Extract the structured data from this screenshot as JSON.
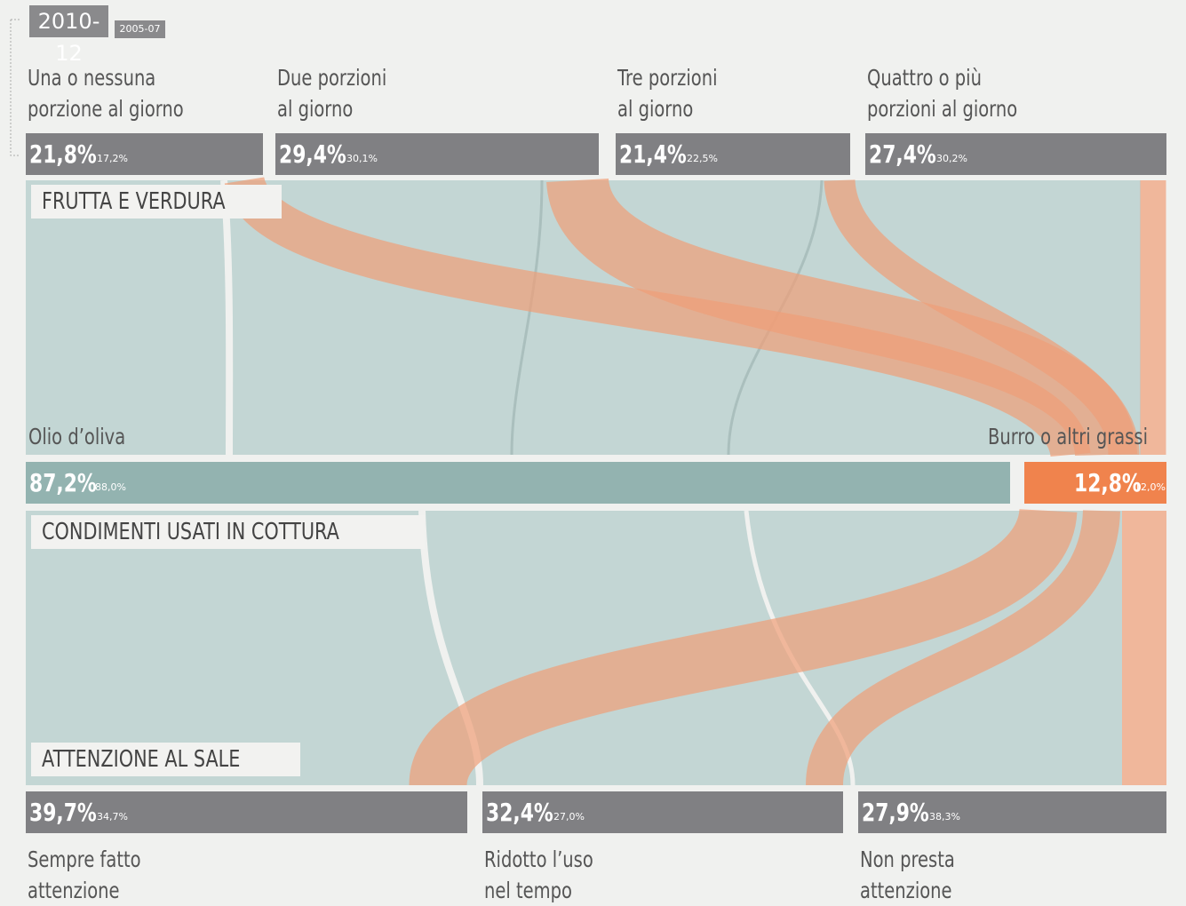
{
  "legend": {
    "current": "2010-12",
    "previous": "2005-07"
  },
  "top_groups": [
    {
      "lines": [
        "Una o nessuna",
        "porzione al giorno"
      ],
      "value": "21,8%",
      "previous": "17,2%"
    },
    {
      "lines": [
        "Due porzioni",
        "al giorno"
      ],
      "value": "29,4%",
      "previous": "30,1%"
    },
    {
      "lines": [
        "Tre porzioni",
        "al giorno"
      ],
      "value": "21,4%",
      "previous": "22,5%"
    },
    {
      "lines": [
        "Quattro o più",
        "porzioni al giorno"
      ],
      "value": "27,4%",
      "previous": "30,2%"
    }
  ],
  "sections": [
    "FRUTTA E VERDURA",
    "CONDIMENTI USATI IN COTTURA",
    "ATTENZIONE AL SALE"
  ],
  "middle": [
    {
      "label": "Olio d’oliva",
      "value": "87,2%",
      "previous": "88,0%"
    },
    {
      "label": "Burro o altri grassi",
      "value": "12,8%",
      "previous": "12,0%"
    }
  ],
  "bottom_groups": [
    {
      "lines": [
        "Sempre fatto",
        "attenzione"
      ],
      "value": "39,7%",
      "previous": "34,7%"
    },
    {
      "lines": [
        "Ridotto l’uso",
        "nel tempo"
      ],
      "value": "32,4%",
      "previous": "27,0%"
    },
    {
      "lines": [
        "Non presta",
        "attenzione"
      ],
      "value": "27,9%",
      "previous": "38,3%"
    }
  ]
}
